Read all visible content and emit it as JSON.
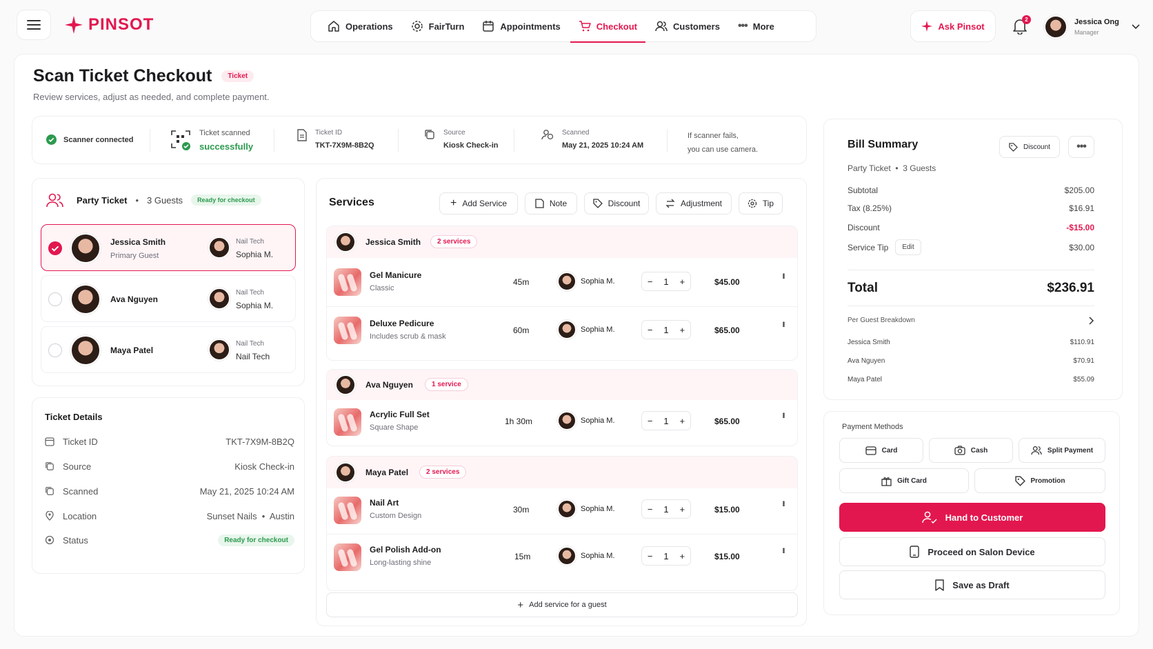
{
  "brand": {
    "name": "PINSOT",
    "color": "#e3174f"
  },
  "nav": [
    {
      "label": "Operations",
      "icon": "home-icon"
    },
    {
      "label": "FairTurn",
      "icon": "gear-icon"
    },
    {
      "label": "Appointments",
      "icon": "calendar-icon"
    },
    {
      "label": "Checkout",
      "icon": "cart-icon",
      "active": true
    },
    {
      "label": "Customers",
      "icon": "users-icon"
    },
    {
      "label": "More",
      "icon": "more-icon"
    }
  ],
  "ask": "Ask Pinsot",
  "notif_count": "2",
  "user": {
    "name": "Jessica Ong",
    "role": "Manager"
  },
  "page": {
    "title": "Scan Ticket Checkout",
    "badge": "Ticket",
    "subtitle": "Review services, adjust as needed, and complete payment."
  },
  "scanbar": {
    "scanner": "Scanner connected",
    "scanned_label": "Ticket scanned",
    "scanned_value": "successfully",
    "ticket_label": "Ticket ID",
    "ticket_value": "TKT-7X9M-8B2Q",
    "source_label": "Source",
    "source_value": "Kiosk Check-in",
    "time_label": "Scanned",
    "time_value": "May 21, 2025 10:24 AM",
    "fallback_1": "If scanner fails,",
    "fallback_2": "you can use camera."
  },
  "party": {
    "title": "Party Ticket",
    "guests": "3 Guests",
    "status": "Ready for checkout",
    "members": [
      {
        "name": "Jessica Smith",
        "sub": "Primary Guest",
        "tech_label": "Nail Tech",
        "tech": "Sophia M.",
        "selected": true
      },
      {
        "name": "Ava Nguyen",
        "sub": "",
        "tech_label": "Nail Tech",
        "tech": "Sophia M.",
        "selected": false
      },
      {
        "name": "Maya Patel",
        "sub": "",
        "tech_label": "Nail Tech",
        "tech": "Nail Tech",
        "selected": false
      }
    ]
  },
  "details": {
    "title": "Ticket Details",
    "rows": [
      {
        "label": "Ticket ID",
        "value": "TKT-7X9M-8B2Q"
      },
      {
        "label": "Source",
        "value": "Kiosk Check-in"
      },
      {
        "label": "Scanned",
        "value": "May 21, 2025 10:24 AM"
      },
      {
        "label": "Location",
        "value": "Sunset Nails  •  Austin"
      },
      {
        "label": "Status",
        "value": "Ready for checkout"
      }
    ]
  },
  "services": {
    "title": "Services",
    "actions": [
      "Add Service",
      "Note",
      "Discount",
      "Adjustment",
      "Tip"
    ],
    "groups": [
      {
        "guest": "Jessica Smith",
        "count": "2 services",
        "items": [
          {
            "name": "Gel Manicure",
            "sub": "Classic",
            "dur": "45m",
            "tech": "Sophia M.",
            "qty": "1",
            "price": "$45.00"
          },
          {
            "name": "Deluxe Pedicure",
            "sub": "Includes scrub & mask",
            "dur": "60m",
            "tech": "Sophia M.",
            "qty": "1",
            "price": "$65.00"
          }
        ]
      },
      {
        "guest": "Ava Nguyen",
        "count": "1 service",
        "items": [
          {
            "name": "Acrylic Full Set",
            "sub": "Square Shape",
            "dur": "1h 30m",
            "tech": "Sophia M.",
            "qty": "1",
            "price": "$65.00"
          }
        ]
      },
      {
        "guest": "Maya Patel",
        "count": "2 services",
        "items": [
          {
            "name": "Nail Art",
            "sub": "Custom Design",
            "dur": "30m",
            "tech": "Sophia M.",
            "qty": "1",
            "price": "$15.00"
          },
          {
            "name": "Gel Polish Add-on",
            "sub": "Long-lasting shine",
            "dur": "15m",
            "tech": "Sophia M.",
            "qty": "1",
            "price": "$15.00"
          }
        ]
      }
    ],
    "add_for_guest": "Add service for a guest"
  },
  "bill": {
    "title": "Bill Summary",
    "discount_btn": "Discount",
    "party": "Party Ticket  •  3 Guests",
    "subtotal_label": "Subtotal",
    "subtotal": "$205.00",
    "tax_label": "Tax (8.25%)",
    "tax": "$16.91",
    "discount_label": "Discount",
    "discount": "-$15.00",
    "tip_label": "Service Tip",
    "tip_edit": "Edit",
    "tip": "$30.00",
    "total_label": "Total",
    "total": "$236.91",
    "breakdown_label": "Per Guest Breakdown",
    "breakdown": [
      {
        "name": "Jessica Smith",
        "amount": "$110.91"
      },
      {
        "name": "Ava Nguyen",
        "amount": "$70.91"
      },
      {
        "name": "Maya Patel",
        "amount": "$55.09"
      }
    ]
  },
  "payment": {
    "title": "Payment Methods",
    "methods": [
      "Card",
      "Cash",
      "Split Payment",
      "Gift Card",
      "Promotion"
    ],
    "primary": "Hand to Customer",
    "device": "Proceed on Salon Device",
    "draft": "Save as Draft"
  }
}
